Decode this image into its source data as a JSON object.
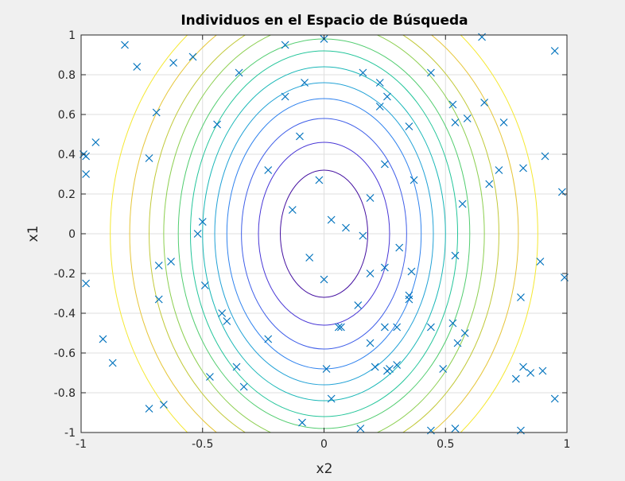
{
  "chart_data": {
    "type": "scatter",
    "title": "Individuos en el Espacio de Búsqueda",
    "xlabel": "x2",
    "ylabel": "x1",
    "xlim": [
      -1,
      1
    ],
    "ylim": [
      -1,
      1
    ],
    "xticks": [
      -1,
      -0.5,
      0,
      0.5,
      1
    ],
    "xtick_labels": [
      "-1",
      "-0.5",
      "0",
      "0.5",
      "1"
    ],
    "yticks": [
      -1,
      -0.8,
      -0.6,
      -0.4,
      -0.2,
      0,
      0.2,
      0.4,
      0.6,
      0.8,
      1
    ],
    "ytick_labels": [
      "-1",
      "-0.8",
      "-0.6",
      "-0.4",
      "-0.2",
      "0",
      "0.2",
      "0.4",
      "0.6",
      "0.8",
      "1"
    ],
    "grid": true,
    "marker": "x",
    "marker_color": "#0072bd",
    "contour": {
      "shape": "ellipse",
      "center": [
        0,
        0
      ],
      "x_semi_axes": [
        0.18,
        0.27,
        0.34,
        0.4,
        0.45,
        0.5,
        0.55,
        0.6,
        0.66,
        0.72,
        0.8,
        0.88
      ],
      "y_semi_axes": [
        0.32,
        0.46,
        0.58,
        0.68,
        0.76,
        0.84,
        0.92,
        0.98,
        1.06,
        1.12,
        1.2,
        1.3
      ],
      "colors": [
        "#440fa0",
        "#4836d6",
        "#3f5ee8",
        "#2f82ee",
        "#22a2d6",
        "#19b7b7",
        "#23c59a",
        "#52cd70",
        "#8ccf50",
        "#c2c93a",
        "#e6c63a",
        "#f5e830"
      ]
    },
    "points": [
      {
        "x": -0.82,
        "y": 0.95
      },
      {
        "x": -0.77,
        "y": 0.84
      },
      {
        "x": -0.62,
        "y": 0.86
      },
      {
        "x": -0.54,
        "y": 0.89
      },
      {
        "x": -0.16,
        "y": 0.95
      },
      {
        "x": 0.0,
        "y": 0.98
      },
      {
        "x": 0.65,
        "y": 0.99
      },
      {
        "x": 0.95,
        "y": 0.92
      },
      {
        "x": -0.35,
        "y": 0.81
      },
      {
        "x": 0.16,
        "y": 0.81
      },
      {
        "x": 0.44,
        "y": 0.81
      },
      {
        "x": -0.08,
        "y": 0.76
      },
      {
        "x": 0.23,
        "y": 0.76
      },
      {
        "x": -0.16,
        "y": 0.69
      },
      {
        "x": 0.26,
        "y": 0.69
      },
      {
        "x": 0.66,
        "y": 0.66
      },
      {
        "x": 0.53,
        "y": 0.65
      },
      {
        "x": 0.23,
        "y": 0.64
      },
      {
        "x": -0.69,
        "y": 0.61
      },
      {
        "x": 0.59,
        "y": 0.58
      },
      {
        "x": 0.54,
        "y": 0.56
      },
      {
        "x": 0.74,
        "y": 0.56
      },
      {
        "x": -0.44,
        "y": 0.55
      },
      {
        "x": 0.35,
        "y": 0.54
      },
      {
        "x": -0.1,
        "y": 0.49
      },
      {
        "x": -0.94,
        "y": 0.46
      },
      {
        "x": -0.99,
        "y": 0.4
      },
      {
        "x": -0.98,
        "y": 0.39
      },
      {
        "x": 0.91,
        "y": 0.39
      },
      {
        "x": -0.72,
        "y": 0.38
      },
      {
        "x": 0.25,
        "y": 0.35
      },
      {
        "x": 0.82,
        "y": 0.33
      },
      {
        "x": -0.23,
        "y": 0.32
      },
      {
        "x": 0.72,
        "y": 0.32
      },
      {
        "x": -0.98,
        "y": 0.3
      },
      {
        "x": -0.02,
        "y": 0.27
      },
      {
        "x": 0.37,
        "y": 0.27
      },
      {
        "x": 0.68,
        "y": 0.25
      },
      {
        "x": 0.98,
        "y": 0.21
      },
      {
        "x": 0.19,
        "y": 0.18
      },
      {
        "x": 0.57,
        "y": 0.15
      },
      {
        "x": -0.13,
        "y": 0.12
      },
      {
        "x": 0.03,
        "y": 0.07
      },
      {
        "x": -0.5,
        "y": 0.06
      },
      {
        "x": 0.09,
        "y": 0.03
      },
      {
        "x": -0.52,
        "y": 0.0
      },
      {
        "x": 0.16,
        "y": -0.01
      },
      {
        "x": 0.31,
        "y": -0.07
      },
      {
        "x": -0.06,
        "y": -0.12
      },
      {
        "x": 0.54,
        "y": -0.11
      },
      {
        "x": -0.63,
        "y": -0.14
      },
      {
        "x": 0.89,
        "y": -0.14
      },
      {
        "x": -0.68,
        "y": -0.16
      },
      {
        "x": 0.25,
        "y": -0.17
      },
      {
        "x": 0.36,
        "y": -0.19
      },
      {
        "x": 0.19,
        "y": -0.2
      },
      {
        "x": 0.0,
        "y": -0.23
      },
      {
        "x": 0.99,
        "y": -0.22
      },
      {
        "x": -0.98,
        "y": -0.25
      },
      {
        "x": -0.49,
        "y": -0.26
      },
      {
        "x": 0.35,
        "y": -0.31
      },
      {
        "x": -0.68,
        "y": -0.33
      },
      {
        "x": 0.35,
        "y": -0.33
      },
      {
        "x": 0.81,
        "y": -0.32
      },
      {
        "x": 0.14,
        "y": -0.36
      },
      {
        "x": -0.42,
        "y": -0.4
      },
      {
        "x": -0.4,
        "y": -0.44
      },
      {
        "x": 0.06,
        "y": -0.47
      },
      {
        "x": 0.07,
        "y": -0.47
      },
      {
        "x": 0.25,
        "y": -0.47
      },
      {
        "x": 0.3,
        "y": -0.47
      },
      {
        "x": 0.44,
        "y": -0.47
      },
      {
        "x": 0.53,
        "y": -0.45
      },
      {
        "x": -0.91,
        "y": -0.53
      },
      {
        "x": -0.23,
        "y": -0.53
      },
      {
        "x": 0.58,
        "y": -0.5
      },
      {
        "x": 0.19,
        "y": -0.55
      },
      {
        "x": 0.55,
        "y": -0.55
      },
      {
        "x": -0.87,
        "y": -0.65
      },
      {
        "x": -0.36,
        "y": -0.67
      },
      {
        "x": 0.21,
        "y": -0.67
      },
      {
        "x": 0.3,
        "y": -0.66
      },
      {
        "x": 0.26,
        "y": -0.69
      },
      {
        "x": 0.27,
        "y": -0.68
      },
      {
        "x": 0.49,
        "y": -0.68
      },
      {
        "x": 0.82,
        "y": -0.67
      },
      {
        "x": 0.85,
        "y": -0.7
      },
      {
        "x": 0.9,
        "y": -0.69
      },
      {
        "x": 0.01,
        "y": -0.68
      },
      {
        "x": -0.47,
        "y": -0.72
      },
      {
        "x": 0.79,
        "y": -0.73
      },
      {
        "x": -0.33,
        "y": -0.77
      },
      {
        "x": 0.03,
        "y": -0.83
      },
      {
        "x": 0.95,
        "y": -0.83
      },
      {
        "x": -0.66,
        "y": -0.86
      },
      {
        "x": -0.72,
        "y": -0.88
      },
      {
        "x": -0.09,
        "y": -0.95
      },
      {
        "x": 0.15,
        "y": -0.98
      },
      {
        "x": 0.44,
        "y": -0.99
      },
      {
        "x": 0.54,
        "y": -0.98
      },
      {
        "x": 0.81,
        "y": -0.99
      }
    ]
  }
}
